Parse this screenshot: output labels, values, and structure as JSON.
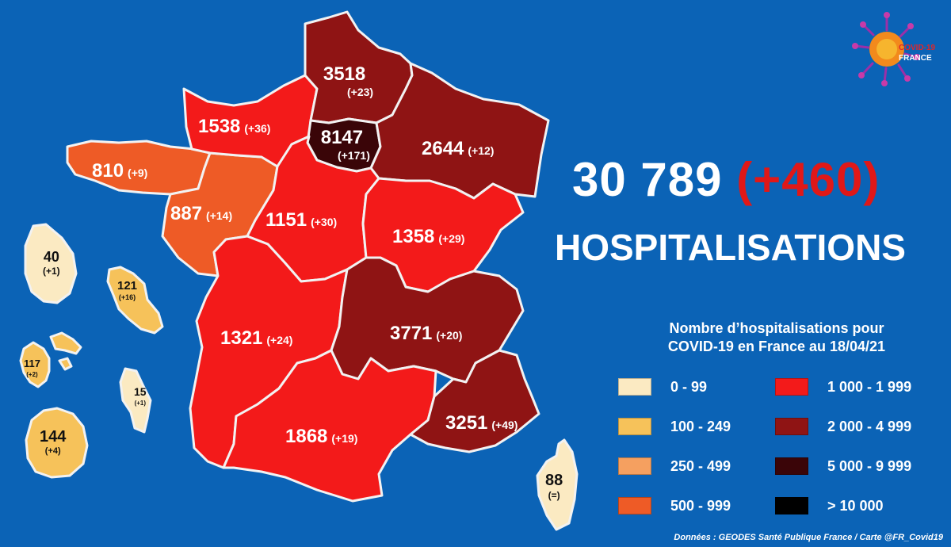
{
  "header": {
    "total": "30 789",
    "total_delta": "(+460)",
    "subtitle": "HOSPITALISATIONS"
  },
  "legend": {
    "title_line1": "Nombre d’hospitalisations pour",
    "title_line2": "COVID-19 en France au 18/04/21",
    "items": [
      {
        "label": "0 - 99",
        "color": "#fbeac2"
      },
      {
        "label": "100 - 249",
        "color": "#f6c25a"
      },
      {
        "label": "250 - 499",
        "color": "#f5a060"
      },
      {
        "label": "500 - 999",
        "color": "#ee5b26"
      },
      {
        "label": "1 000 - 1 999",
        "color": "#f31a1a"
      },
      {
        "label": "2 000 - 4 999",
        "color": "#8f1414"
      },
      {
        "label": "5 000 - 9 999",
        "color": "#3a0508"
      },
      {
        "label": "> 10 000",
        "color": "#000000"
      }
    ]
  },
  "regions": {
    "hauts_de_france": {
      "value": "3518",
      "delta": "(+23)",
      "color": "#8f1414"
    },
    "normandie": {
      "value": "1538",
      "delta": "(+36)",
      "color": "#f31a1a"
    },
    "ile_de_france": {
      "value": "8147",
      "delta": "(+171)",
      "color": "#3a0508"
    },
    "grand_est": {
      "value": "2644",
      "delta": "(+12)",
      "color": "#8f1414"
    },
    "bretagne": {
      "value": "810",
      "delta": "(+9)",
      "color": "#ee5b26"
    },
    "pays_de_la_loire": {
      "value": "887",
      "delta": "(+14)",
      "color": "#ee5b26"
    },
    "centre_val_de_loire": {
      "value": "1151",
      "delta": "(+30)",
      "color": "#f31a1a"
    },
    "bourgogne_franche_comte": {
      "value": "1358",
      "delta": "(+29)",
      "color": "#f31a1a"
    },
    "nouvelle_aquitaine": {
      "value": "1321",
      "delta": "(+24)",
      "color": "#f31a1a"
    },
    "auvergne_rhone_alpes": {
      "value": "3771",
      "delta": "(+20)",
      "color": "#8f1414"
    },
    "occitanie": {
      "value": "1868",
      "delta": "(+19)",
      "color": "#f31a1a"
    },
    "paca": {
      "value": "3251",
      "delta": "(+49)",
      "color": "#8f1414"
    },
    "corse": {
      "value": "88",
      "delta": "(=)",
      "color": "#fbeac2"
    },
    "guyane": {
      "value": "40",
      "delta": "(+1)",
      "color": "#fbeac2"
    },
    "martinique": {
      "value": "121",
      "delta": "(+16)",
      "color": "#f6c25a"
    },
    "guadeloupe": {
      "value": "117",
      "delta": "(+2)",
      "color": "#f6c25a"
    },
    "mayotte": {
      "value": "15",
      "delta": "(+1)",
      "color": "#fbeac2"
    },
    "la_reunion": {
      "value": "144",
      "delta": "(+4)",
      "color": "#f6c25a"
    }
  },
  "logo": {
    "line1": "COVID-19",
    "line2": "FRANCE"
  },
  "credit": "Données : GEODES Santé Publique France / Carte @FR_Covid19",
  "background_color": "#0b63b6"
}
